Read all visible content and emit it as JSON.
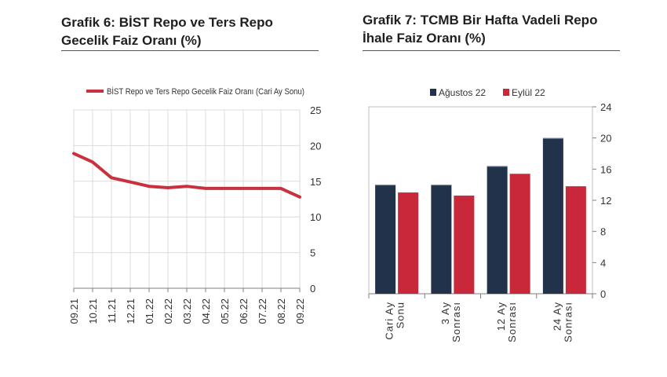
{
  "left_panel": {
    "title": "Grafik 6:  BİST Repo ve Ters Repo Gecelik Faiz Oranı (%)"
  },
  "right_panel": {
    "title": "Grafik 7: TCMB Bir Hafta Vadeli Repo İhale Faiz Oranı (%)"
  },
  "chart_data": [
    {
      "type": "line",
      "title": "",
      "xlabel": "",
      "ylabel": "",
      "categories": [
        "09.21",
        "10.21",
        "11.21",
        "12.21",
        "01.22",
        "02.22",
        "03.22",
        "04.22",
        "05.22",
        "06.22",
        "07.22",
        "08.22",
        "09.22"
      ],
      "series": [
        {
          "name": "BİST Repo ve Ters Repo Gecelik Faiz Oranı (Cari Ay Sonu)",
          "color": "#c8323f",
          "values": [
            18.9,
            17.7,
            15.5,
            14.9,
            14.3,
            14.1,
            14.3,
            14.0,
            14.0,
            14.0,
            14.0,
            14.0,
            12.8
          ]
        }
      ],
      "ylim": [
        0,
        25
      ],
      "yticks": [
        0,
        5,
        10,
        15,
        20,
        25
      ],
      "y_axis_side": "right",
      "grid": true,
      "legend_position": "top"
    },
    {
      "type": "bar",
      "title": "",
      "xlabel": "",
      "ylabel": "",
      "categories": [
        "Cari Ay Sonu",
        "3 Ay Sonrası",
        "12 Ay Sonrası",
        "24 Ay Sonrası"
      ],
      "series": [
        {
          "name": "Ağustos 22",
          "color": "#22324a",
          "values": [
            14.0,
            14.0,
            16.4,
            20.0
          ]
        },
        {
          "name": "Eylül 22",
          "color": "#c8283a",
          "values": [
            13.0,
            12.6,
            15.4,
            13.8
          ]
        }
      ],
      "ylim": [
        0,
        24
      ],
      "yticks": [
        0,
        4,
        8,
        12,
        16,
        20,
        24
      ],
      "y_axis_side": "right",
      "grid": false,
      "legend_position": "top"
    }
  ]
}
